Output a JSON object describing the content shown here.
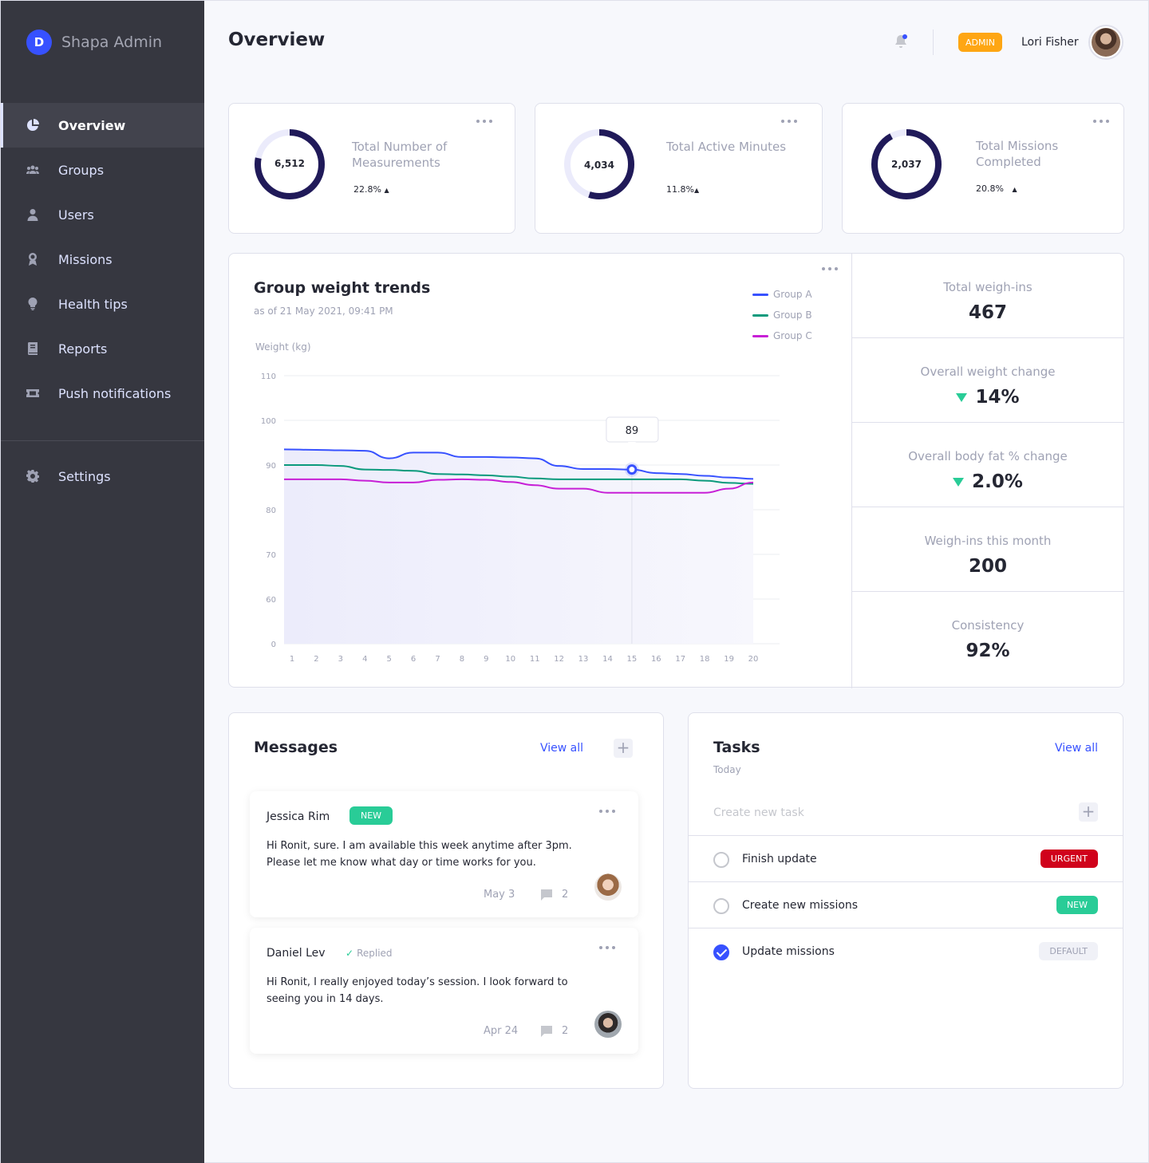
{
  "brand": {
    "logo_letter": "D",
    "name": "Shapa Admin",
    "accent": "#3751ff"
  },
  "sidebar": {
    "items": [
      {
        "label": "Overview",
        "icon": "pie-chart-icon",
        "active": true
      },
      {
        "label": "Groups",
        "icon": "groups-icon"
      },
      {
        "label": "Users",
        "icon": "user-icon"
      },
      {
        "label": "Missions",
        "icon": "award-icon"
      },
      {
        "label": "Health tips",
        "icon": "lightbulb-icon"
      },
      {
        "label": "Reports",
        "icon": "book-icon"
      },
      {
        "label": "Push notifications",
        "icon": "ticket-icon"
      }
    ],
    "settings": {
      "label": "Settings",
      "icon": "gear-icon"
    }
  },
  "header": {
    "title": "Overview",
    "role_badge": "ADMIN",
    "user_name": "Lori Fisher"
  },
  "stats": [
    {
      "value": "6,512",
      "title": "Total Number of Measurements",
      "change": "22.8%",
      "trend": "up",
      "fill": 0.78
    },
    {
      "value": "4,034",
      "title": "Total Active Minutes",
      "change": "11.8%",
      "trend": "up",
      "fill": 0.55
    },
    {
      "value": "2,037",
      "title": "Total Missions Completed",
      "change": "20.8%",
      "trend": "up",
      "fill": 0.92
    }
  ],
  "weight_chart": {
    "title": "Group weight trends",
    "subtitle": "as of 21 May 2021, 09:41 PM",
    "ylabel": "Weight (kg)",
    "tooltip": "89",
    "tooltip_x": 15
  },
  "chart_data": {
    "type": "line",
    "title": "Group weight trends",
    "xlabel": "",
    "ylabel": "Weight (kg)",
    "x": [
      1,
      2,
      3,
      4,
      5,
      6,
      7,
      8,
      9,
      10,
      11,
      12,
      13,
      14,
      15,
      16,
      17,
      18,
      19,
      20
    ],
    "y_ticks": [
      110,
      100,
      90,
      80,
      70,
      60,
      0
    ],
    "ylim": [
      0,
      110
    ],
    "series": [
      {
        "name": "Group A",
        "color": "#3751ff",
        "values": [
          93.5,
          93.4,
          93.3,
          93.2,
          91.5,
          92.8,
          92.8,
          91.8,
          91.8,
          91.7,
          91.5,
          89.8,
          89.1,
          89.1,
          89.0,
          88.2,
          88.0,
          87.6,
          87.2,
          86.9
        ]
      },
      {
        "name": "Group B",
        "color": "#0b9a7c",
        "values": [
          90.0,
          90.0,
          89.8,
          89.0,
          88.9,
          88.7,
          88.0,
          87.9,
          87.7,
          87.4,
          87.0,
          86.8,
          86.8,
          86.8,
          86.8,
          86.8,
          86.8,
          86.5,
          86.0,
          85.8
        ]
      },
      {
        "name": "Group C",
        "color": "#c71fd6",
        "values": [
          86.8,
          86.8,
          86.8,
          86.5,
          86.1,
          86.1,
          86.7,
          86.8,
          86.7,
          86.2,
          85.5,
          84.7,
          84.7,
          83.8,
          83.8,
          83.8,
          83.8,
          83.8,
          84.7,
          86.1
        ]
      }
    ],
    "legend_position": "top-right",
    "grid": true
  },
  "kpis": [
    {
      "label": "Total weigh-ins",
      "value": "467",
      "trend": ""
    },
    {
      "label": "Overall weight change",
      "value": "14%",
      "trend": "down"
    },
    {
      "label": "Overall body fat % change",
      "value": "2.0%",
      "trend": "down"
    },
    {
      "label": "Weigh-ins this month",
      "value": "200",
      "trend": ""
    },
    {
      "label": "Consistency",
      "value": "92%",
      "trend": ""
    }
  ],
  "messages": {
    "title": "Messages",
    "view_all": "View all",
    "add": "+",
    "items": [
      {
        "name": "Jessica Rim",
        "tag": "NEW",
        "body": "Hi Ronit, sure. I am available this week anytime after 3pm. Please let me know what day or time works for you.",
        "date": "May 3",
        "comments": "2"
      },
      {
        "name": "Daniel Lev",
        "tag": "Replied",
        "check": "✓",
        "body": "Hi Ronit, I really enjoyed today’s session. I look forward to seeing you in 14 days.",
        "date": "Apr 24",
        "comments": "2"
      }
    ]
  },
  "tasks": {
    "title": "Tasks",
    "view_all": "View all",
    "subtitle": "Today",
    "placeholder": "Create new task",
    "add": "+",
    "items": [
      {
        "label": "Finish update",
        "badge": "URGENT",
        "done": false
      },
      {
        "label": "Create new missions",
        "badge": "NEW",
        "done": false
      },
      {
        "label": "Update missions",
        "badge": "DEFAULT",
        "done": true
      }
    ]
  }
}
